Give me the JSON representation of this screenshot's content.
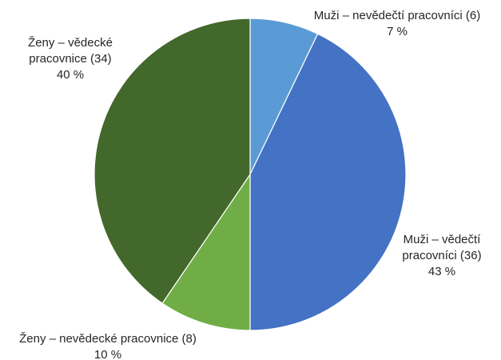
{
  "chart_data": {
    "type": "pie",
    "title": "",
    "start_angle_deg": 0,
    "direction": "clockwise",
    "slices": [
      {
        "name": "Muži – nevědečtí pracovníci (6)",
        "value": 6,
        "percent_label": "7 %",
        "color": "#5B9BD5",
        "label_lines": [
          "Muži – nevědečtí pracovníci (6)",
          "7 %"
        ]
      },
      {
        "name": "Muži – vědečtí pracovníci (36)",
        "value": 36,
        "percent_label": "43 %",
        "color": "#4472C4",
        "label_lines": [
          "Muži – vědečtí",
          "pracovníci (36)",
          "43 %"
        ]
      },
      {
        "name": "Ženy – nevědecké pracovnice (8)",
        "value": 8,
        "percent_label": "10 %",
        "color": "#70AD47",
        "label_lines": [
          "Ženy – nevědecké pracovnice (8)",
          "10 %"
        ]
      },
      {
        "name": "Ženy – vědecké pracovnice (34)",
        "value": 34,
        "percent_label": "40 %",
        "color": "#43682B",
        "label_lines": [
          "Ženy – vědecké",
          "pracovnice (34)",
          "40 %"
        ]
      }
    ]
  }
}
